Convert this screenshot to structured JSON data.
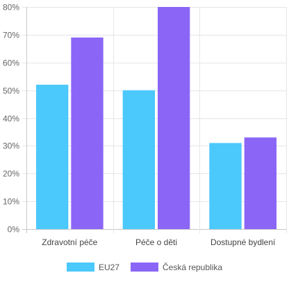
{
  "chart_data": {
    "type": "bar",
    "categories": [
      "Zdravotní péče",
      "Péče o děti",
      "Dostupné bydlení"
    ],
    "series": [
      {
        "name": "EU27",
        "values": [
          52,
          50,
          31
        ],
        "color": "#4bc8fc"
      },
      {
        "name": "Česká republika",
        "values": [
          69,
          80,
          33
        ],
        "color": "#8b66f6"
      }
    ],
    "ylim": [
      0,
      80
    ],
    "yticks": [
      0,
      10,
      20,
      30,
      40,
      50,
      60,
      70,
      80
    ],
    "ytick_suffix": "%",
    "grid": true,
    "legend_position": "bottom"
  }
}
